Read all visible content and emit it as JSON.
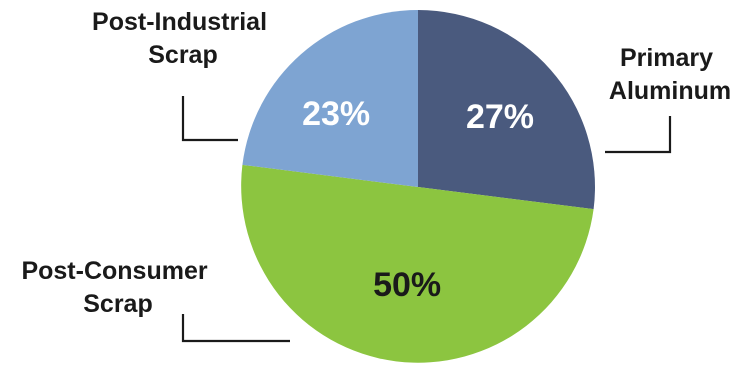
{
  "chart_data": {
    "type": "pie",
    "title": "",
    "slices": [
      {
        "label_lines": [
          "Primary",
          "Aluminum"
        ],
        "value": 27,
        "value_label": "27%",
        "color": "#4a5a7e",
        "value_label_color": "#ffffff"
      },
      {
        "label_lines": [
          "Post-Consumer",
          "Scrap"
        ],
        "value": 50,
        "value_label": "50%",
        "color": "#8cc540",
        "value_label_color": "#1a1a1a"
      },
      {
        "label_lines": [
          "Post-Industrial",
          "Scrap"
        ],
        "value": 23,
        "value_label": "23%",
        "color": "#7ea4d2",
        "value_label_color": "#ffffff"
      }
    ],
    "start_angle_deg": 0,
    "direction": "clockwise",
    "legend": "none"
  }
}
